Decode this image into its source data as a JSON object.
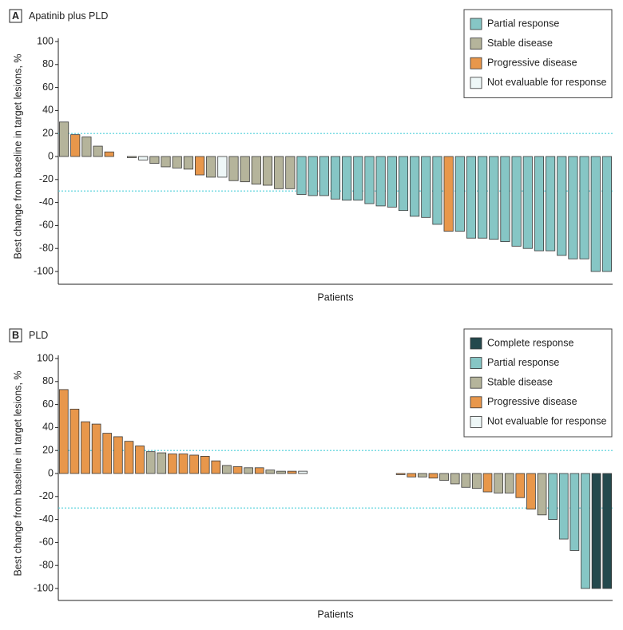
{
  "chart_data": [
    {
      "type": "bar",
      "panel": "A",
      "title": "Apatinib plus PLD",
      "ylabel": "Best change from baseline in target lesions, %",
      "xlabel": "Patients",
      "ylim": [
        -100,
        100
      ],
      "yticks": [
        -100,
        -80,
        -60,
        -40,
        -20,
        0,
        20,
        40,
        60,
        80,
        100
      ],
      "reference_lines": [
        20,
        -30
      ],
      "reference_color": "#4fd0da",
      "series": [
        {
          "name": "Partial response",
          "color": "#86c6c5"
        },
        {
          "name": "Stable disease",
          "color": "#b5b49b"
        },
        {
          "name": "Progressive disease",
          "color": "#e8974b"
        },
        {
          "name": "Not evaluable for response",
          "color": "#eef7f7"
        }
      ],
      "values": [
        30,
        19,
        17,
        9,
        4,
        0,
        -1,
        -3,
        -6,
        -9,
        -10,
        -11,
        -16,
        -18,
        -18,
        -21,
        -22,
        -24,
        -25,
        -28,
        -28,
        -33,
        -34,
        -34,
        -37,
        -38,
        -38,
        -41,
        -43,
        -44,
        -47,
        -52,
        -53,
        -59,
        -65,
        -65,
        -71,
        -71,
        -72,
        -74,
        -78,
        -80,
        -82,
        -82,
        -86,
        -89,
        -89,
        -100,
        -100
      ],
      "response": [
        "Stable disease",
        "Progressive disease",
        "Stable disease",
        "Stable disease",
        "Progressive disease",
        "Stable disease",
        "Stable disease",
        "Not evaluable for response",
        "Stable disease",
        "Stable disease",
        "Stable disease",
        "Stable disease",
        "Progressive disease",
        "Stable disease",
        "Not evaluable for response",
        "Stable disease",
        "Stable disease",
        "Stable disease",
        "Stable disease",
        "Stable disease",
        "Stable disease",
        "Partial response",
        "Partial response",
        "Partial response",
        "Partial response",
        "Partial response",
        "Partial response",
        "Partial response",
        "Partial response",
        "Partial response",
        "Partial response",
        "Partial response",
        "Partial response",
        "Partial response",
        "Progressive disease",
        "Partial response",
        "Partial response",
        "Partial response",
        "Partial response",
        "Partial response",
        "Partial response",
        "Partial response",
        "Partial response",
        "Partial response",
        "Partial response",
        "Partial response",
        "Partial response",
        "Partial response",
        "Partial response"
      ]
    },
    {
      "type": "bar",
      "panel": "B",
      "title": "PLD",
      "ylabel": "Best change from baseline in target lesions, %",
      "xlabel": "Patients",
      "ylim": [
        -100,
        100
      ],
      "yticks": [
        -100,
        -80,
        -60,
        -40,
        -20,
        0,
        20,
        40,
        60,
        80,
        100
      ],
      "reference_lines": [
        20,
        -30
      ],
      "reference_color": "#4fd0da",
      "series": [
        {
          "name": "Complete response",
          "color": "#24494d"
        },
        {
          "name": "Partial response",
          "color": "#86c6c5"
        },
        {
          "name": "Stable disease",
          "color": "#b5b49b"
        },
        {
          "name": "Progressive disease",
          "color": "#e8974b"
        },
        {
          "name": "Not evaluable for response",
          "color": "#eef7f7"
        }
      ],
      "values": [
        73,
        56,
        45,
        43,
        35,
        32,
        28,
        24,
        19,
        18,
        17,
        17,
        16,
        15,
        11,
        7,
        6,
        5,
        5,
        3,
        2,
        2,
        2,
        0,
        0,
        0,
        0,
        0,
        0,
        0,
        0,
        -1,
        -3,
        -3,
        -4,
        -6,
        -9,
        -12,
        -13,
        -16,
        -17,
        -17,
        -21,
        -31,
        -36,
        -40,
        -57,
        -67,
        -100,
        -100,
        -100
      ],
      "response": [
        "Progressive disease",
        "Progressive disease",
        "Progressive disease",
        "Progressive disease",
        "Progressive disease",
        "Progressive disease",
        "Progressive disease",
        "Progressive disease",
        "Stable disease",
        "Stable disease",
        "Progressive disease",
        "Progressive disease",
        "Progressive disease",
        "Progressive disease",
        "Progressive disease",
        "Stable disease",
        "Progressive disease",
        "Stable disease",
        "Progressive disease",
        "Stable disease",
        "Stable disease",
        "Progressive disease",
        "Not evaluable for response",
        "Stable disease",
        "Stable disease",
        "Stable disease",
        "Stable disease",
        "Stable disease",
        "Stable disease",
        "Stable disease",
        "Stable disease",
        "Progressive disease",
        "Progressive disease",
        "Stable disease",
        "Progressive disease",
        "Stable disease",
        "Stable disease",
        "Stable disease",
        "Stable disease",
        "Progressive disease",
        "Stable disease",
        "Stable disease",
        "Progressive disease",
        "Progressive disease",
        "Stable disease",
        "Partial response",
        "Partial response",
        "Partial response",
        "Partial response",
        "Complete response",
        "Complete response"
      ]
    }
  ]
}
